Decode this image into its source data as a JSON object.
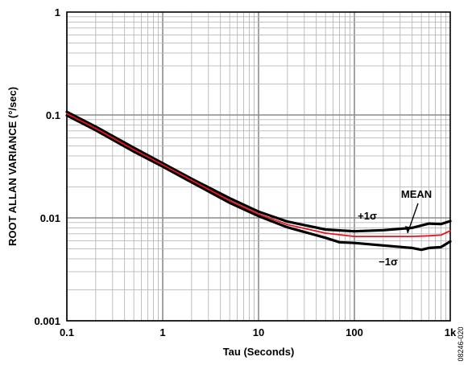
{
  "chart_data": {
    "type": "line",
    "title": "",
    "xlabel": "Tau (Seconds)",
    "ylabel": "ROOT ALLAN VARIANCE (°/sec)",
    "xscale": "log",
    "yscale": "log",
    "xlim": [
      0.1,
      1000
    ],
    "ylim": [
      0.001,
      1
    ],
    "grid": true,
    "xticks": [
      {
        "value": 0.1,
        "label": "0.1"
      },
      {
        "value": 1,
        "label": "1"
      },
      {
        "value": 10,
        "label": "10"
      },
      {
        "value": 100,
        "label": "100"
      },
      {
        "value": 1000,
        "label": "1k"
      }
    ],
    "yticks": [
      {
        "value": 0.001,
        "label": "0.001"
      },
      {
        "value": 0.01,
        "label": "0.01"
      },
      {
        "value": 0.1,
        "label": "0.1"
      },
      {
        "value": 1,
        "label": "1"
      }
    ],
    "series": [
      {
        "name": "+1σ",
        "color": "#000000",
        "x": [
          0.1,
          0.2,
          0.5,
          1,
          2,
          5,
          10,
          20,
          50,
          100,
          200,
          400,
          600,
          800,
          1000
        ],
        "y": [
          0.107,
          0.077,
          0.048,
          0.034,
          0.024,
          0.0155,
          0.0115,
          0.0092,
          0.0077,
          0.0074,
          0.0076,
          0.008,
          0.0088,
          0.0087,
          0.0093
        ]
      },
      {
        "name": "MEAN",
        "color": "#e8141c",
        "x": [
          0.1,
          0.2,
          0.5,
          1,
          2,
          5,
          10,
          20,
          50,
          100,
          200,
          400,
          600,
          800,
          1000
        ],
        "y": [
          0.103,
          0.074,
          0.046,
          0.0328,
          0.0232,
          0.0147,
          0.0109,
          0.0086,
          0.0071,
          0.0066,
          0.0066,
          0.0066,
          0.0067,
          0.0068,
          0.0075
        ]
      },
      {
        "name": "−1σ",
        "color": "#000000",
        "x": [
          0.1,
          0.2,
          0.5,
          1,
          2,
          5,
          10,
          20,
          50,
          70,
          100,
          200,
          400,
          500,
          600,
          800,
          1000
        ],
        "y": [
          0.099,
          0.071,
          0.044,
          0.0315,
          0.0222,
          0.014,
          0.0104,
          0.0081,
          0.0064,
          0.0058,
          0.0057,
          0.0054,
          0.0051,
          0.0049,
          0.0051,
          0.0052,
          0.0059
        ]
      }
    ],
    "annotations": [
      {
        "text": "MEAN"
      },
      {
        "text": "+1σ"
      },
      {
        "text": "−1σ"
      }
    ]
  },
  "figure_code": "08246-020"
}
